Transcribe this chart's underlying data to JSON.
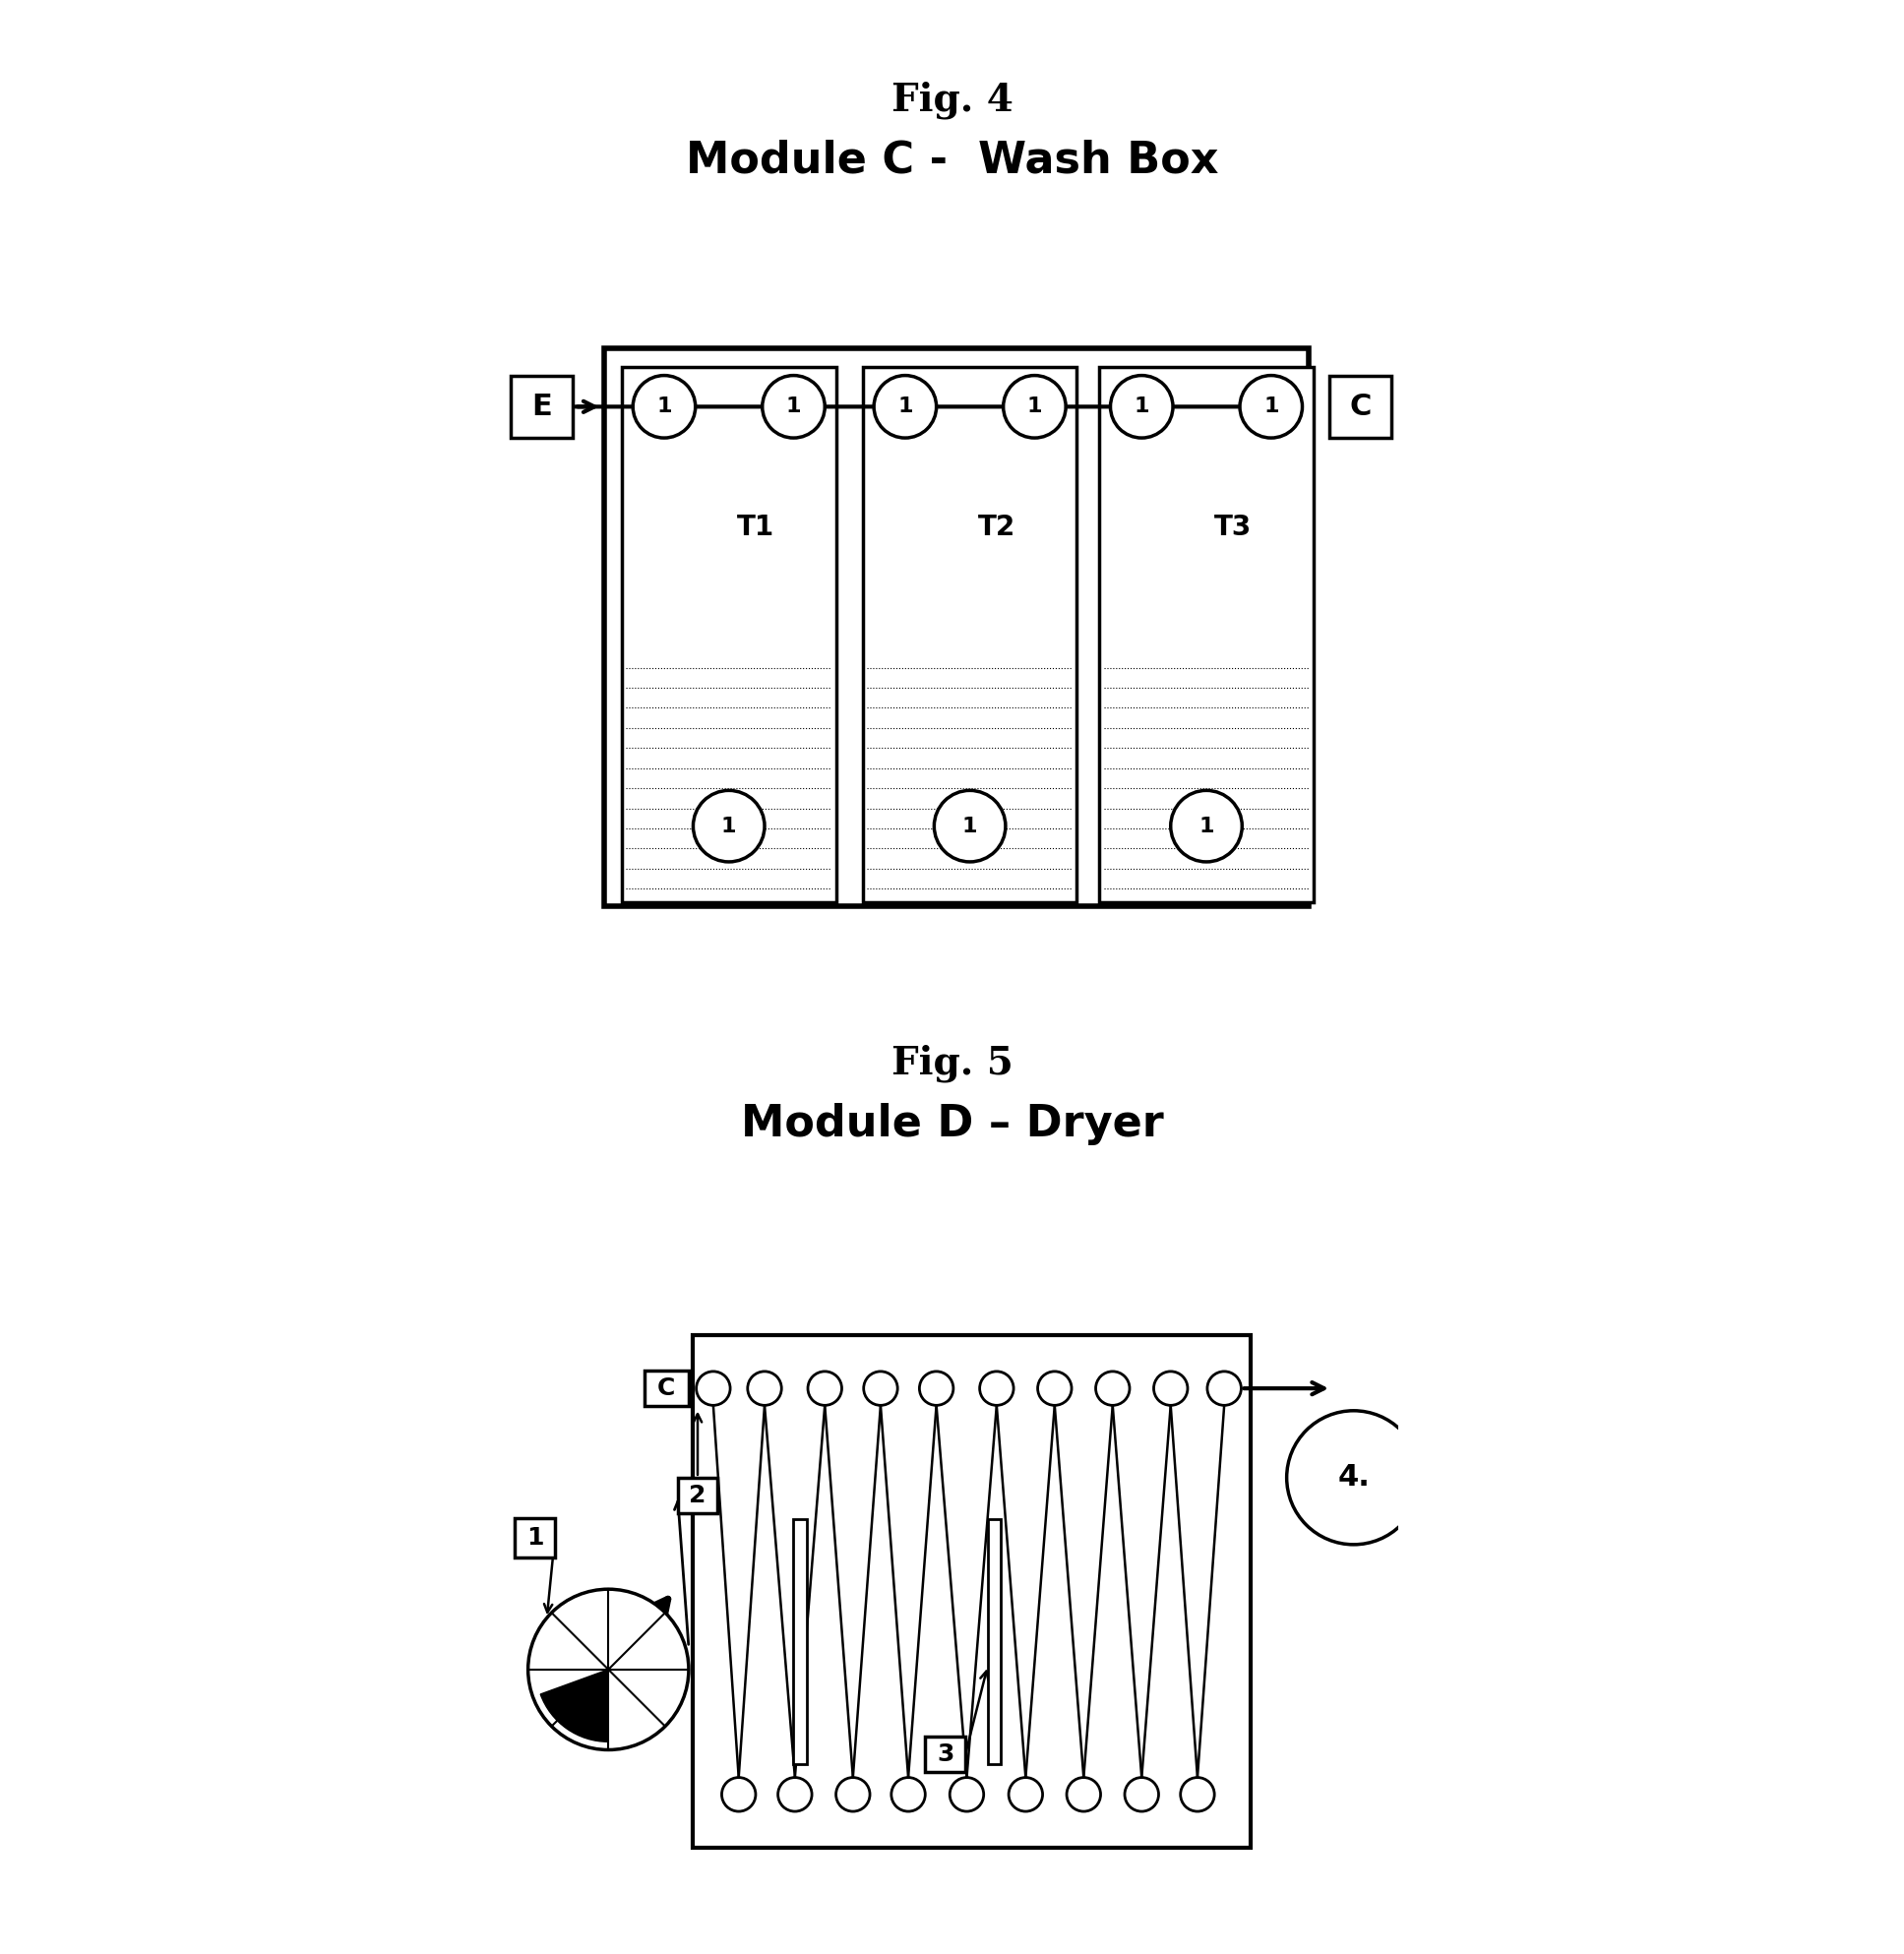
{
  "fig4_title": "Fig. 4",
  "fig4_subtitle": "Module C -  Wash Box",
  "fig5_title": "Fig. 5",
  "fig5_subtitle": "Module D – Dryer",
  "bg_color": "#ffffff",
  "line_color": "#000000",
  "text_color": "#000000"
}
